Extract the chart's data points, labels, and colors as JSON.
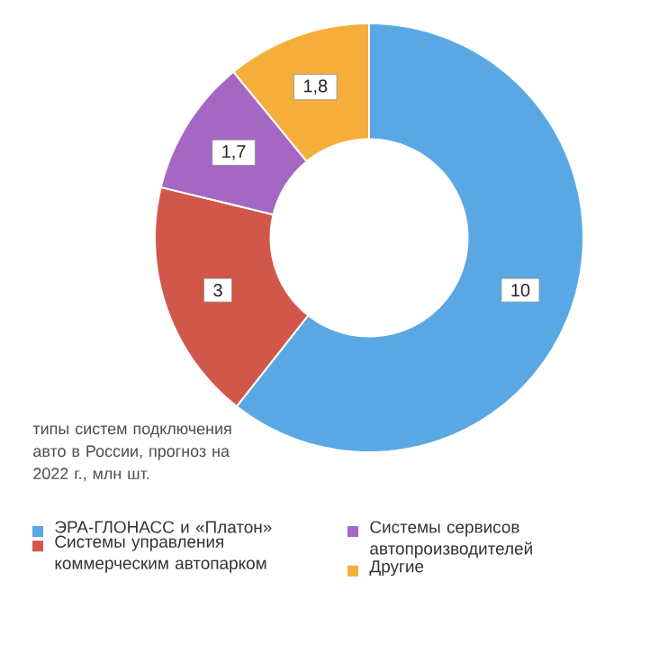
{
  "chart_data": {
    "type": "donut",
    "title": "типы систем подключения авто в России, прогноз на 2022 г., млн шт.",
    "categories": [
      "ЭРА-ГЛОНАСС и «Платон»",
      "Системы управления коммерческим автопарком",
      "Системы сервисов автопроизводителей",
      "Другие"
    ],
    "values": [
      10,
      3,
      1.7,
      1.8
    ],
    "value_labels": [
      "10",
      "3",
      "1,7",
      "1,8"
    ],
    "colors": [
      "#5aa8e3",
      "#d2574b",
      "#a468c2",
      "#f6ae3b"
    ],
    "legend": "bottom"
  }
}
